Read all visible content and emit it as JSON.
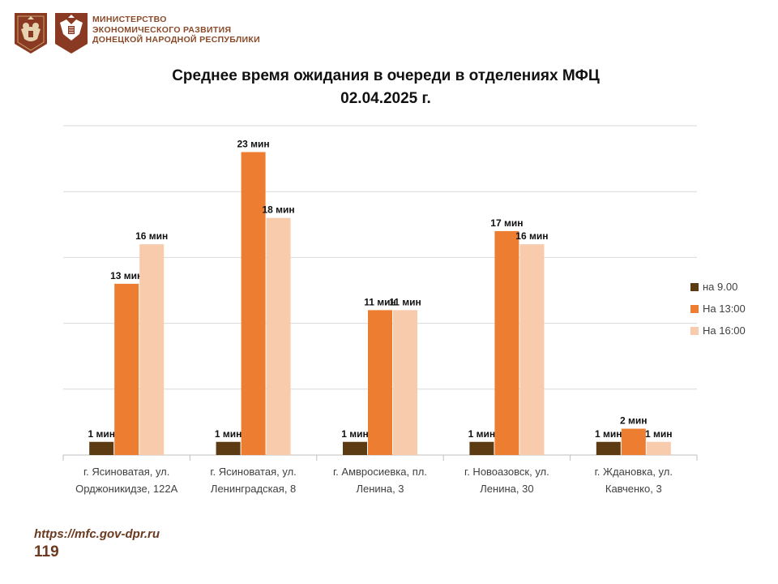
{
  "header": {
    "ministry_lines": [
      "МИНИСТЕРСТВО",
      "ЭКОНОМИЧЕСКОГО РАЗВИТИЯ",
      "ДОНЕЦКОЙ НАРОДНОЙ РЕСПУБЛИКИ"
    ],
    "emblems": [
      "coat-of-arms-icon",
      "eagle-coat-of-arms-icon"
    ]
  },
  "footer": {
    "url": "https://mfc.gov-dpr.ru",
    "page_number": "119"
  },
  "colors": {
    "brand": "#8a4a2a",
    "series_1": "#5c3a12",
    "series_2": "#ed7d31",
    "series_3": "#f7cbac",
    "gridline": "#d9d9d9"
  },
  "chart_data": {
    "type": "bar",
    "title": [
      "Среднее время ожидания в очереди в отделениях МФЦ",
      "02.04.2025   г."
    ],
    "categories": [
      [
        "г. Ясиноватая, ул.",
        "Орджоникидзе, 122А"
      ],
      [
        "г. Ясиноватая, ул.",
        "Ленинградская, 8"
      ],
      [
        "г. Амвросиевка, пл.",
        "Ленина, 3"
      ],
      [
        "г. Новоазовск, ул.",
        "Ленина, 30"
      ],
      [
        "г. Ждановка, ул.",
        "Кавченко, 3"
      ]
    ],
    "series": [
      {
        "name": "на 9.00",
        "values": [
          1,
          1,
          1,
          1,
          1
        ],
        "labels": [
          "1 мин",
          "1 мин",
          "1 мин",
          "1 мин",
          "1 мин"
        ]
      },
      {
        "name": "На 13:00",
        "values": [
          13,
          23,
          11,
          17,
          2
        ],
        "labels": [
          "13 мин",
          "23 мин",
          "11 мин",
          "17 мин",
          "2 мин"
        ]
      },
      {
        "name": "На 16:00",
        "values": [
          16,
          18,
          11,
          16,
          1
        ],
        "labels": [
          "16 мин",
          "18 мин",
          "11 мин",
          "16 мин",
          "1 мин"
        ]
      }
    ],
    "ylim": [
      0,
      25
    ],
    "grid": true,
    "legend": "right"
  }
}
